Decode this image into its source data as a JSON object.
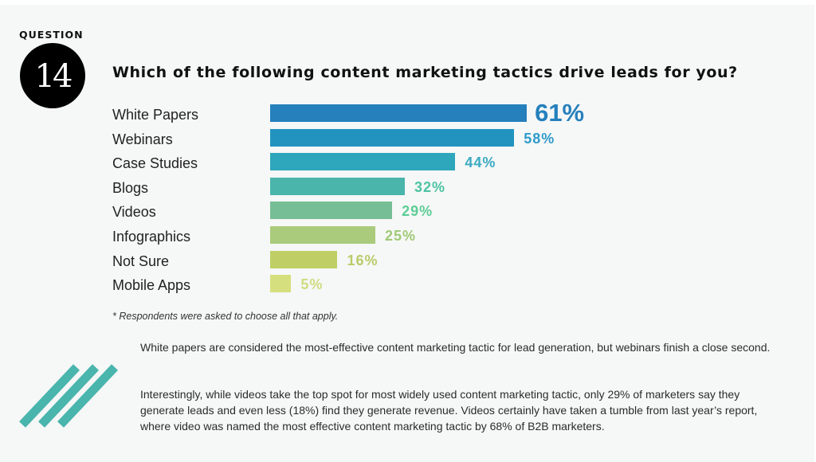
{
  "header": {
    "question_label": "QUESTION",
    "question_number": "14",
    "title": "Which of the following content marketing tactics drive leads for you?"
  },
  "chart_data": {
    "type": "bar",
    "orientation": "horizontal",
    "title": "Which of the following content marketing tactics drive leads for you?",
    "xlabel": "",
    "ylabel": "",
    "categories": [
      "White Papers",
      "Webinars",
      "Case Studies",
      "Blogs",
      "Videos",
      "Infographics",
      "Not Sure",
      "Mobile Apps"
    ],
    "values": [
      61,
      58,
      44,
      32,
      29,
      25,
      16,
      5
    ],
    "value_labels": [
      "61%",
      "58%",
      "44%",
      "32%",
      "29%",
      "25%",
      "16%",
      "5%"
    ],
    "unit": "%",
    "xlim": [
      0,
      100
    ],
    "grid": false,
    "legend": "none",
    "bar_colors": [
      "#2580bc",
      "#2293bf",
      "#2ea6bb",
      "#49b5ab",
      "#76be96",
      "#a9cb7b",
      "#bfcf65",
      "#d6df7e"
    ],
    "label_colors": [
      "#2580bc",
      "#2e9bc9",
      "#3aaac2",
      "#4cc4a3",
      "#5ccd95",
      "#9fca77",
      "#b9cc6a",
      "#cfdc7e"
    ]
  },
  "footnote": "* Respondents were asked to choose all that apply.",
  "body": {
    "paragraph1": "White papers are considered the most-effective content marketing tactic for lead generation, but webinars finish a close second.",
    "paragraph2": "Interestingly, while videos take the top spot for most widely used content marketing tactic, only 29% of marketers say they generate leads and even less (18%) find they generate revenue. Videos certainly have taken a tumble from last year’s report, where video was named the most effective content marketing tactic by 68% of B2B marketers."
  },
  "decoration": {
    "stripe_color": "#49b5ad"
  }
}
